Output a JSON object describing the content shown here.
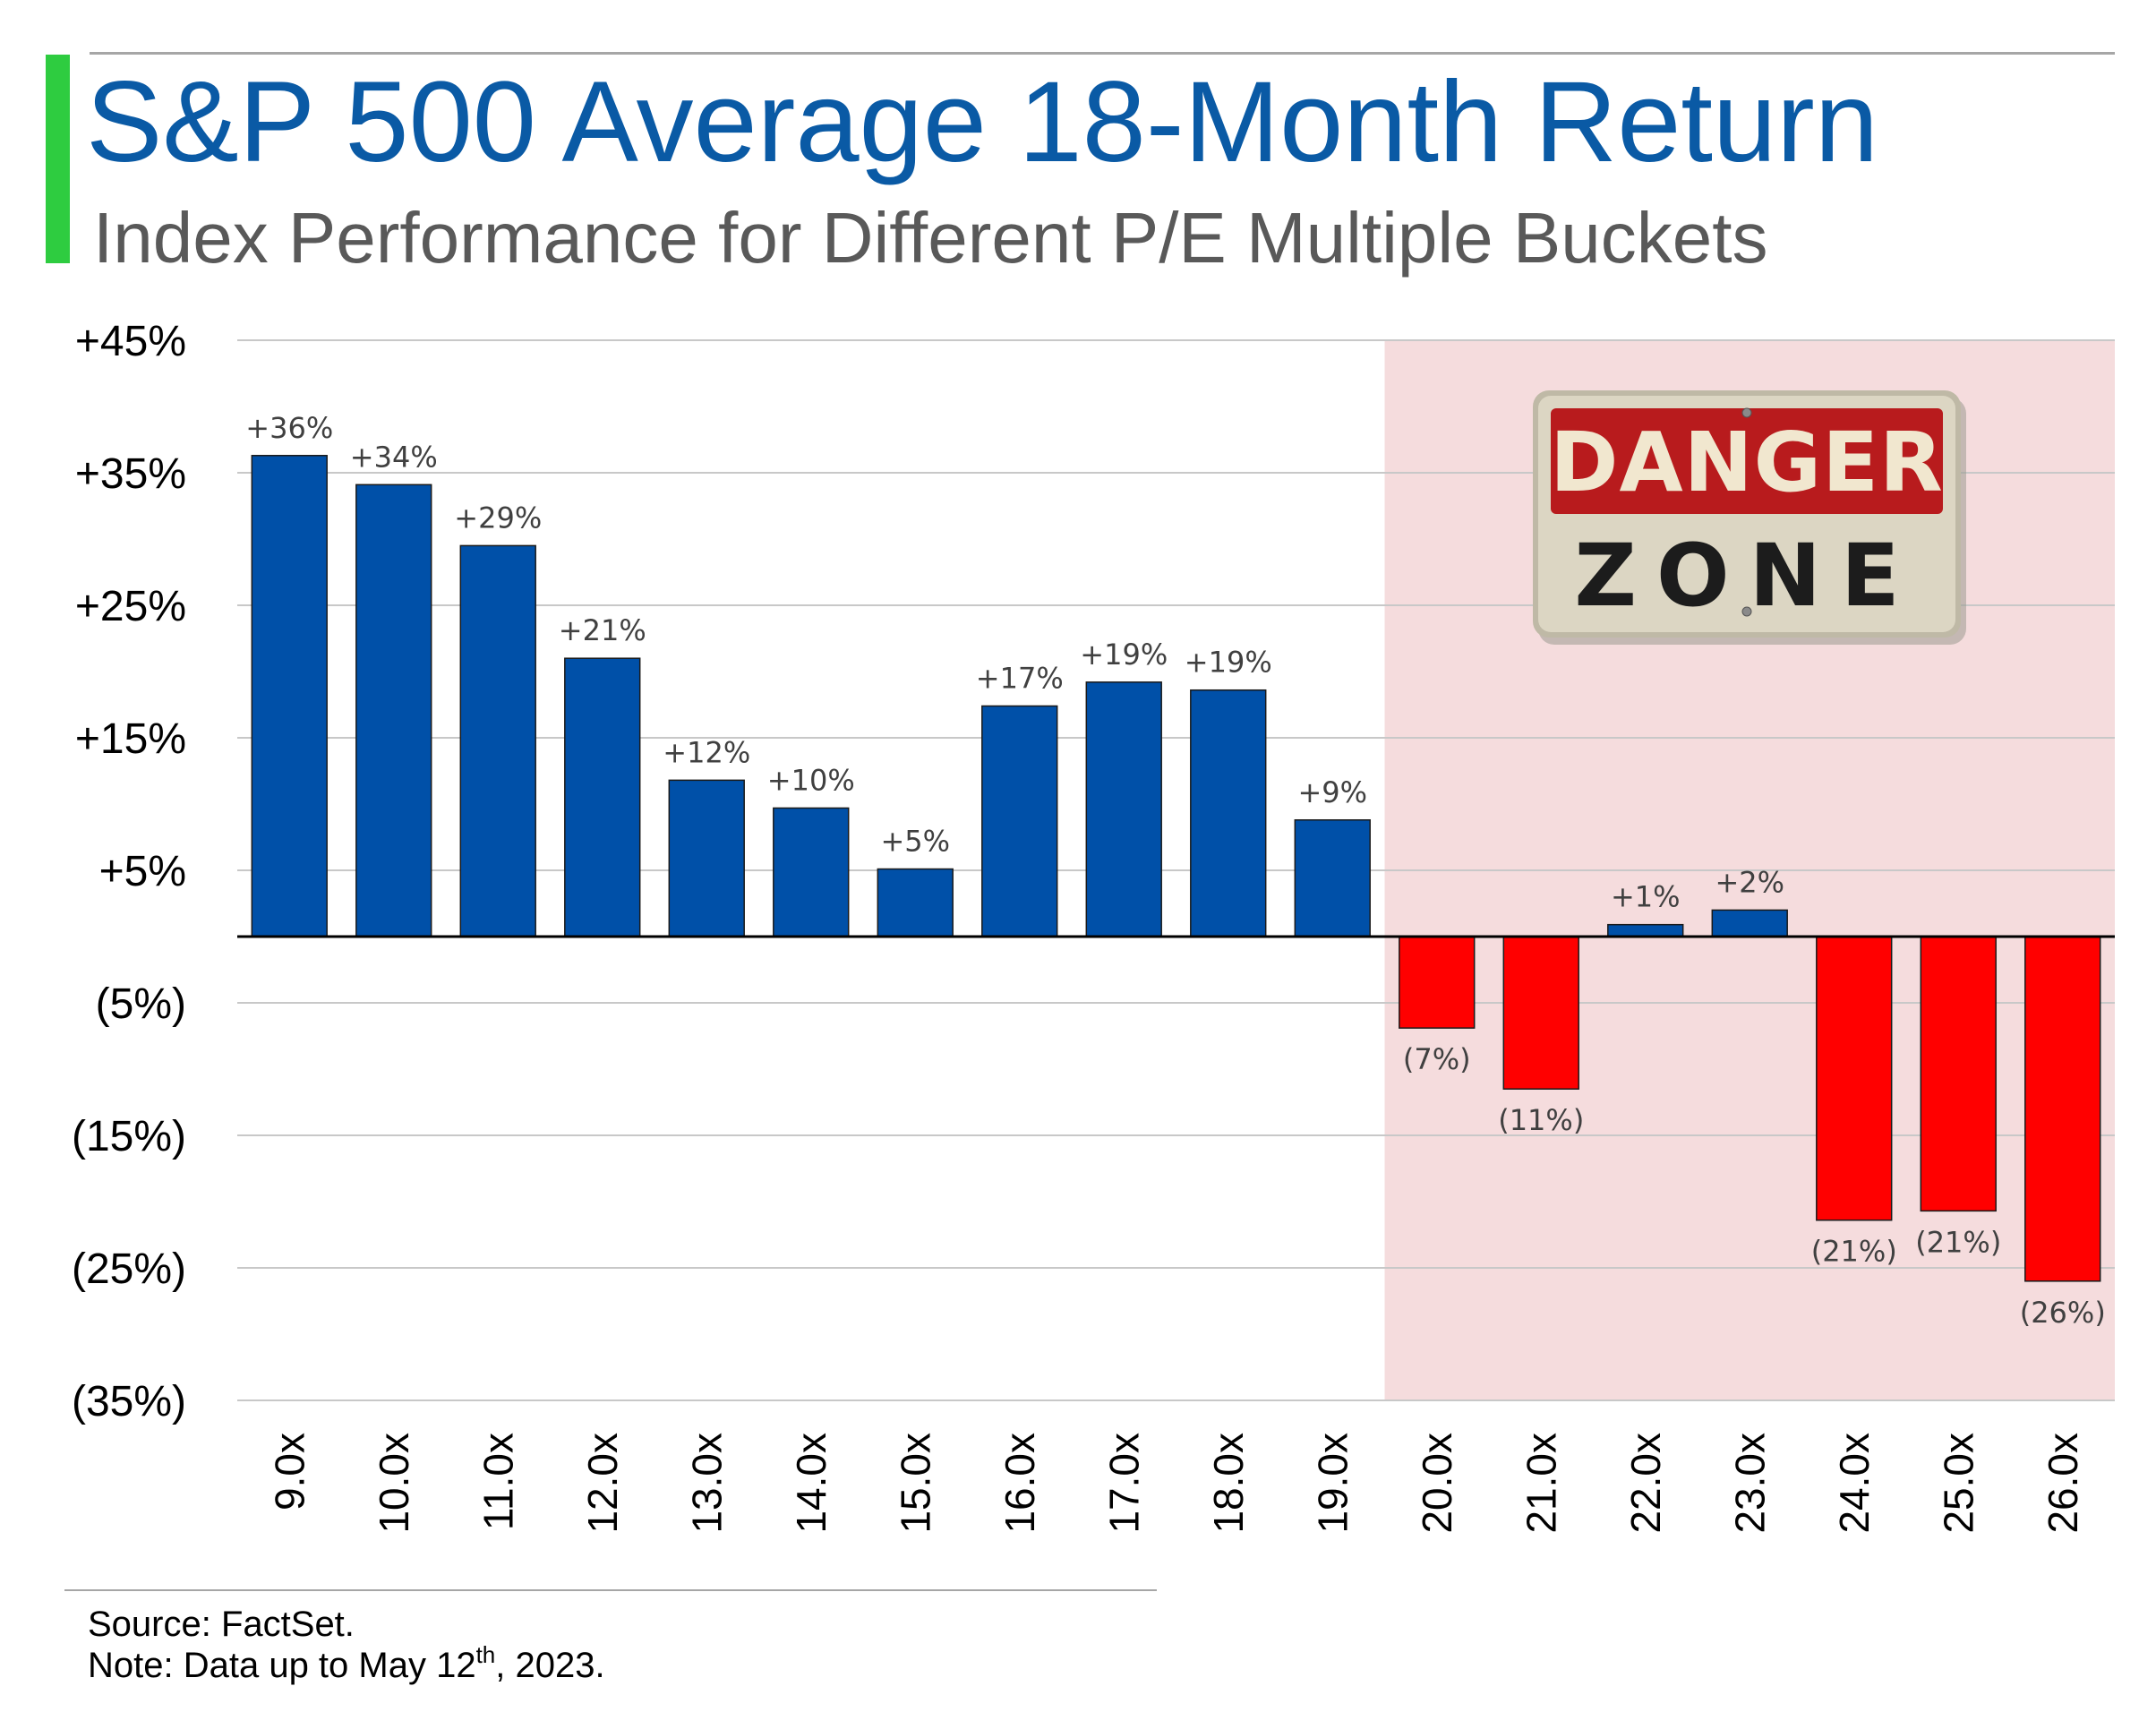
{
  "header": {
    "title": "S&P 500 Average 18-Month Return",
    "subtitle": "Index Performance for Different P/E Multiple Buckets"
  },
  "badge": {
    "line1": "DANGER",
    "line2": "ZONE"
  },
  "footer": {
    "source": "Source: FactSet.",
    "note_prefix": "Note: Data up to May 12",
    "note_sup": "th",
    "note_suffix": ", 2023."
  },
  "colors": {
    "positive": "#0050a8",
    "negative": "#ff0000",
    "danger_zone_shade": "#f5dcdd",
    "title": "#0a5aa5",
    "accent": "#2ecc40"
  },
  "chart_data": {
    "type": "bar",
    "categories": [
      "9.0x",
      "10.0x",
      "11.0x",
      "12.0x",
      "13.0x",
      "14.0x",
      "15.0x",
      "16.0x",
      "17.0x",
      "18.0x",
      "19.0x",
      "20.0x",
      "21.0x",
      "22.0x",
      "23.0x",
      "24.0x",
      "25.0x",
      "26.0x"
    ],
    "values": [
      36.3,
      34.1,
      29.5,
      21.0,
      11.8,
      9.7,
      5.1,
      17.4,
      19.2,
      18.6,
      8.8,
      -6.9,
      -11.5,
      0.9,
      2.0,
      -21.4,
      -20.7,
      -26.0
    ],
    "data_labels": [
      "+36%",
      "+34%",
      "+29%",
      "+21%",
      "+12%",
      "+10%",
      "+5%",
      "+17%",
      "+19%",
      "+19%",
      "+9%",
      "(7%)",
      "(11%)",
      "+1%",
      "+2%",
      "(21%)",
      "(21%)",
      "(26%)"
    ],
    "y_ticks": [
      45,
      35,
      25,
      15,
      5,
      -5,
      -15,
      -25,
      -35
    ],
    "y_tick_labels": [
      "+45%",
      "+35%",
      "+25%",
      "+15%",
      "+5%",
      "(5%)",
      "(15%)",
      "(25%)",
      "(35%)"
    ],
    "ylim": [
      -35,
      45
    ],
    "grid": true,
    "legend": "none",
    "shaded_region": {
      "from_category": "20.0x",
      "to_category": "26.0x"
    }
  }
}
